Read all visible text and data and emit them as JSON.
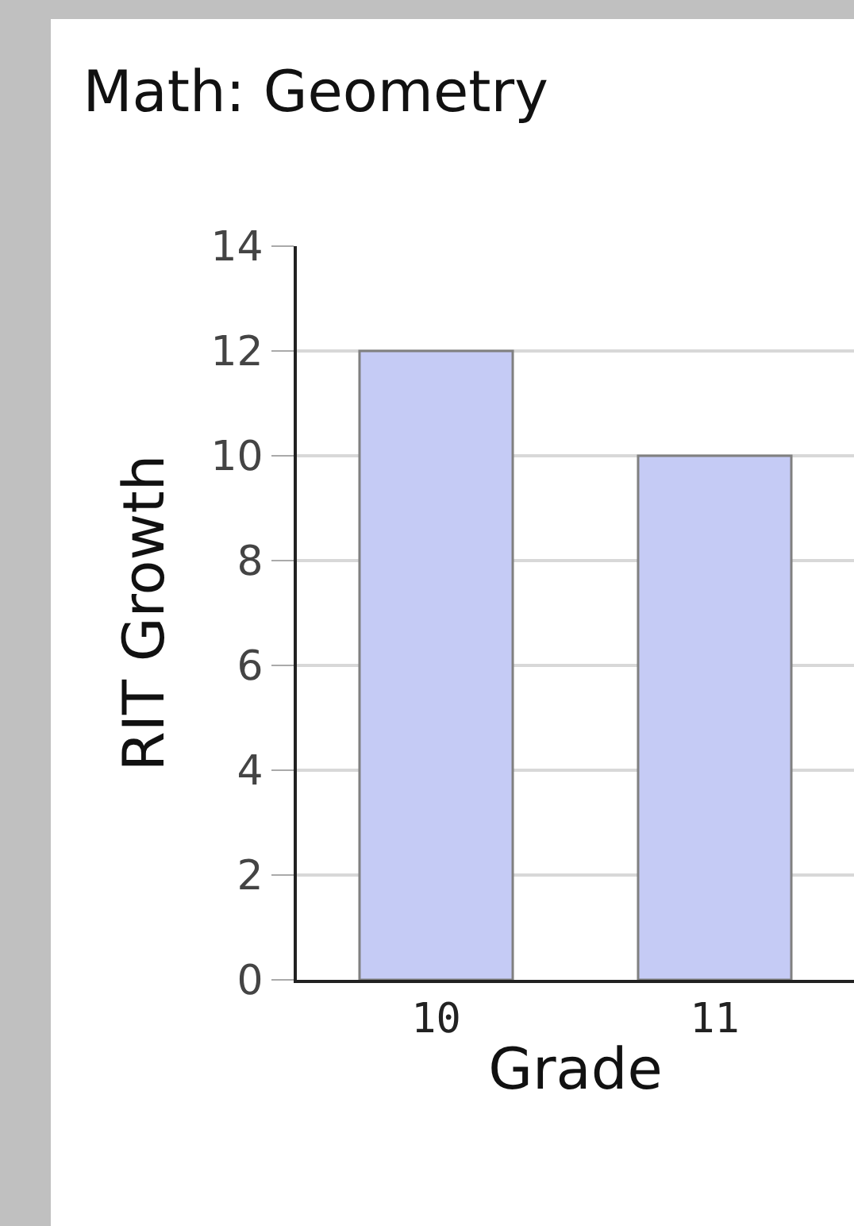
{
  "chart_data": {
    "type": "bar",
    "title": "Math: Geometry",
    "xlabel": "Grade",
    "ylabel": "RIT Growth",
    "categories": [
      "10",
      "11"
    ],
    "values": [
      12,
      10
    ],
    "color": "#c5cbf5",
    "ylim": [
      0,
      14
    ],
    "yticks": [
      0,
      2,
      4,
      6,
      8,
      10,
      12,
      14
    ],
    "grid": "y"
  }
}
